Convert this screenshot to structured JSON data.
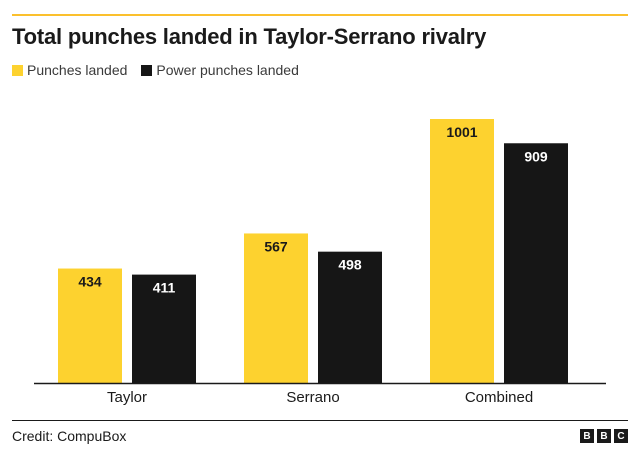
{
  "title": "Total punches landed in Taylor-Serrano rivalry",
  "credit": "Credit: CompuBox",
  "logo": [
    "B",
    "B",
    "C"
  ],
  "colors": {
    "accent": "#fbc02d",
    "punches": "#fdd22f",
    "power": "#161616"
  },
  "chart_data": {
    "type": "bar",
    "categories": [
      "Taylor",
      "Serrano",
      "Combined"
    ],
    "series": [
      {
        "name": "Punches landed",
        "values": [
          434,
          567,
          1001
        ]
      },
      {
        "name": "Power punches landed",
        "values": [
          411,
          498,
          909
        ]
      }
    ],
    "ylim": [
      0,
      1001
    ],
    "grid": false,
    "legend_position": "top-left"
  }
}
